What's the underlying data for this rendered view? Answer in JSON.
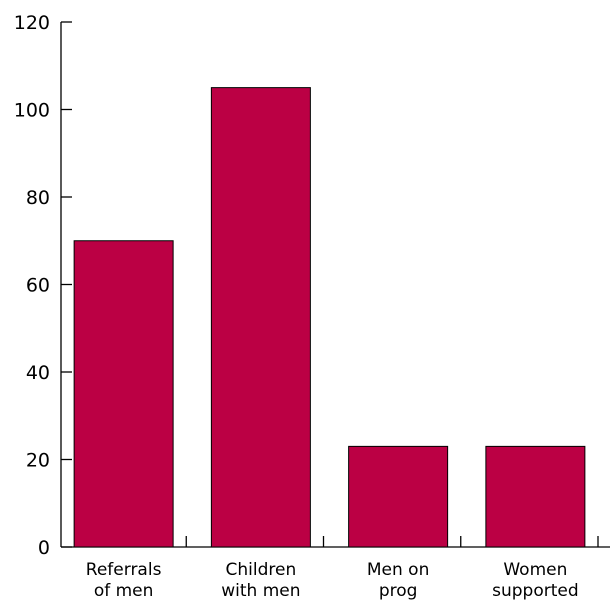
{
  "chart_data": {
    "type": "bar",
    "title": "",
    "xlabel": "",
    "ylabel": "",
    "categories": [
      [
        "Referrals",
        "of men"
      ],
      [
        "Children",
        "with men"
      ],
      [
        "Men on",
        "prog"
      ],
      [
        "Women",
        "supported"
      ]
    ],
    "values": [
      70,
      105,
      23,
      23
    ],
    "ylim": [
      0,
      120
    ],
    "yticks": [
      0,
      20,
      40,
      60,
      80,
      100,
      120
    ],
    "grid": false,
    "legend": "none",
    "bar_color": "#bb0044",
    "bar_outline_color": "#000000",
    "axis_color": "#000000"
  }
}
